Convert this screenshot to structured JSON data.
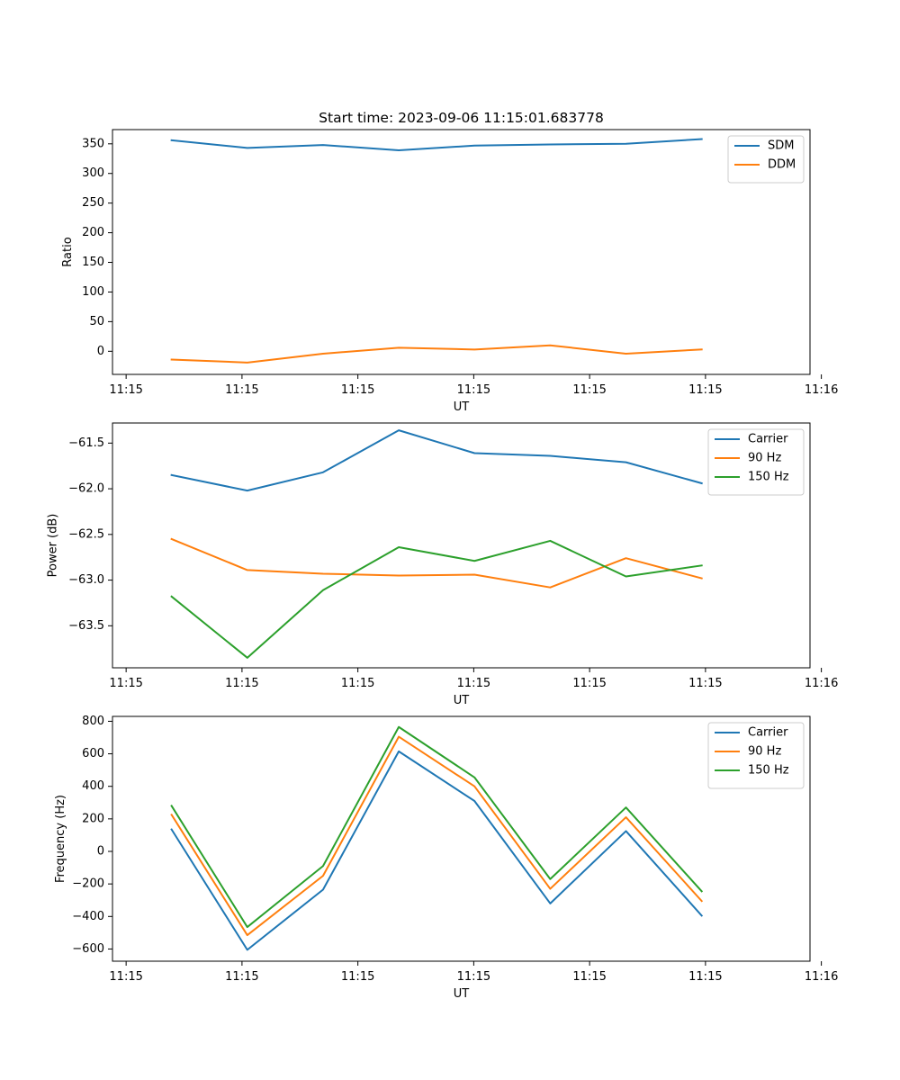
{
  "chart_data": [
    {
      "type": "line",
      "title": "Start time: 2023-09-06 11:15:01.683778",
      "xlabel": "UT",
      "ylabel": "Ratio",
      "x": [
        1,
        2,
        3,
        4,
        5,
        6,
        7,
        8
      ],
      "xlim": [
        0.22,
        9.43
      ],
      "xticks": [
        0.4,
        1.93,
        3.46,
        4.99,
        6.52,
        8.05,
        9.58
      ],
      "xtick_labels": [
        "11:15",
        "11:15",
        "11:15",
        "11:15",
        "11:15",
        "11:15",
        "11:16"
      ],
      "ylim": [
        -39,
        374
      ],
      "yticks": [
        0,
        50,
        100,
        150,
        200,
        250,
        300,
        350
      ],
      "ytick_labels": [
        "0",
        "50",
        "100",
        "150",
        "200",
        "250",
        "300",
        "350"
      ],
      "legend_position": "upper-right",
      "series": [
        {
          "name": "SDM",
          "color": "#1f77b4",
          "values": [
            356,
            343,
            348,
            339,
            347,
            349,
            350,
            358
          ]
        },
        {
          "name": "DDM",
          "color": "#ff7f0e",
          "values": [
            -14,
            -19,
            -4,
            6,
            3,
            10,
            -4,
            3
          ]
        }
      ]
    },
    {
      "type": "line",
      "title": "",
      "xlabel": "UT",
      "ylabel": "Power (dB)",
      "x": [
        1,
        2,
        3,
        4,
        5,
        6,
        7,
        8
      ],
      "xlim": [
        0.22,
        9.43
      ],
      "xticks": [
        0.4,
        1.93,
        3.46,
        4.99,
        6.52,
        8.05,
        9.58
      ],
      "xtick_labels": [
        "11:15",
        "11:15",
        "11:15",
        "11:15",
        "11:15",
        "11:15",
        "11:16"
      ],
      "ylim": [
        -63.96,
        -61.28
      ],
      "yticks": [
        -63.5,
        -63.0,
        -62.5,
        -62.0,
        -61.5
      ],
      "ytick_labels": [
        "−63.5",
        "−63.0",
        "−62.5",
        "−62.0",
        "−61.5"
      ],
      "legend_position": "upper-right",
      "series": [
        {
          "name": "Carrier",
          "color": "#1f77b4",
          "values": [
            -61.85,
            -62.02,
            -61.82,
            -61.36,
            -61.61,
            -61.64,
            -61.71,
            -61.94
          ]
        },
        {
          "name": "90 Hz",
          "color": "#ff7f0e",
          "values": [
            -62.55,
            -62.89,
            -62.93,
            -62.95,
            -62.94,
            -63.08,
            -62.76,
            -62.98
          ]
        },
        {
          "name": "150 Hz",
          "color": "#2ca02c",
          "values": [
            -63.18,
            -63.85,
            -63.11,
            -62.64,
            -62.79,
            -62.57,
            -62.96,
            -62.84
          ]
        }
      ]
    },
    {
      "type": "line",
      "title": "",
      "xlabel": "UT",
      "ylabel": "Frequency (Hz)",
      "x": [
        1,
        2,
        3,
        4,
        5,
        6,
        7,
        8
      ],
      "xlim": [
        0.22,
        9.43
      ],
      "xticks": [
        0.4,
        1.93,
        3.46,
        4.99,
        6.52,
        8.05,
        9.58
      ],
      "xtick_labels": [
        "11:15",
        "11:15",
        "11:15",
        "11:15",
        "11:15",
        "11:15",
        "11:16"
      ],
      "ylim": [
        -675,
        830
      ],
      "yticks": [
        -600,
        -400,
        -200,
        0,
        200,
        400,
        600,
        800
      ],
      "ytick_labels": [
        "−600",
        "−400",
        "−200",
        "0",
        "200",
        "400",
        "600",
        "800"
      ],
      "legend_position": "upper-right",
      "series": [
        {
          "name": "Carrier",
          "color": "#1f77b4",
          "values": [
            135,
            -605,
            -235,
            615,
            310,
            -320,
            125,
            -395
          ]
        },
        {
          "name": "90 Hz",
          "color": "#ff7f0e",
          "values": [
            225,
            -515,
            -150,
            705,
            400,
            -230,
            210,
            -305
          ]
        },
        {
          "name": "150 Hz",
          "color": "#2ca02c",
          "values": [
            280,
            -465,
            -90,
            765,
            455,
            -170,
            270,
            -245
          ]
        }
      ]
    }
  ]
}
